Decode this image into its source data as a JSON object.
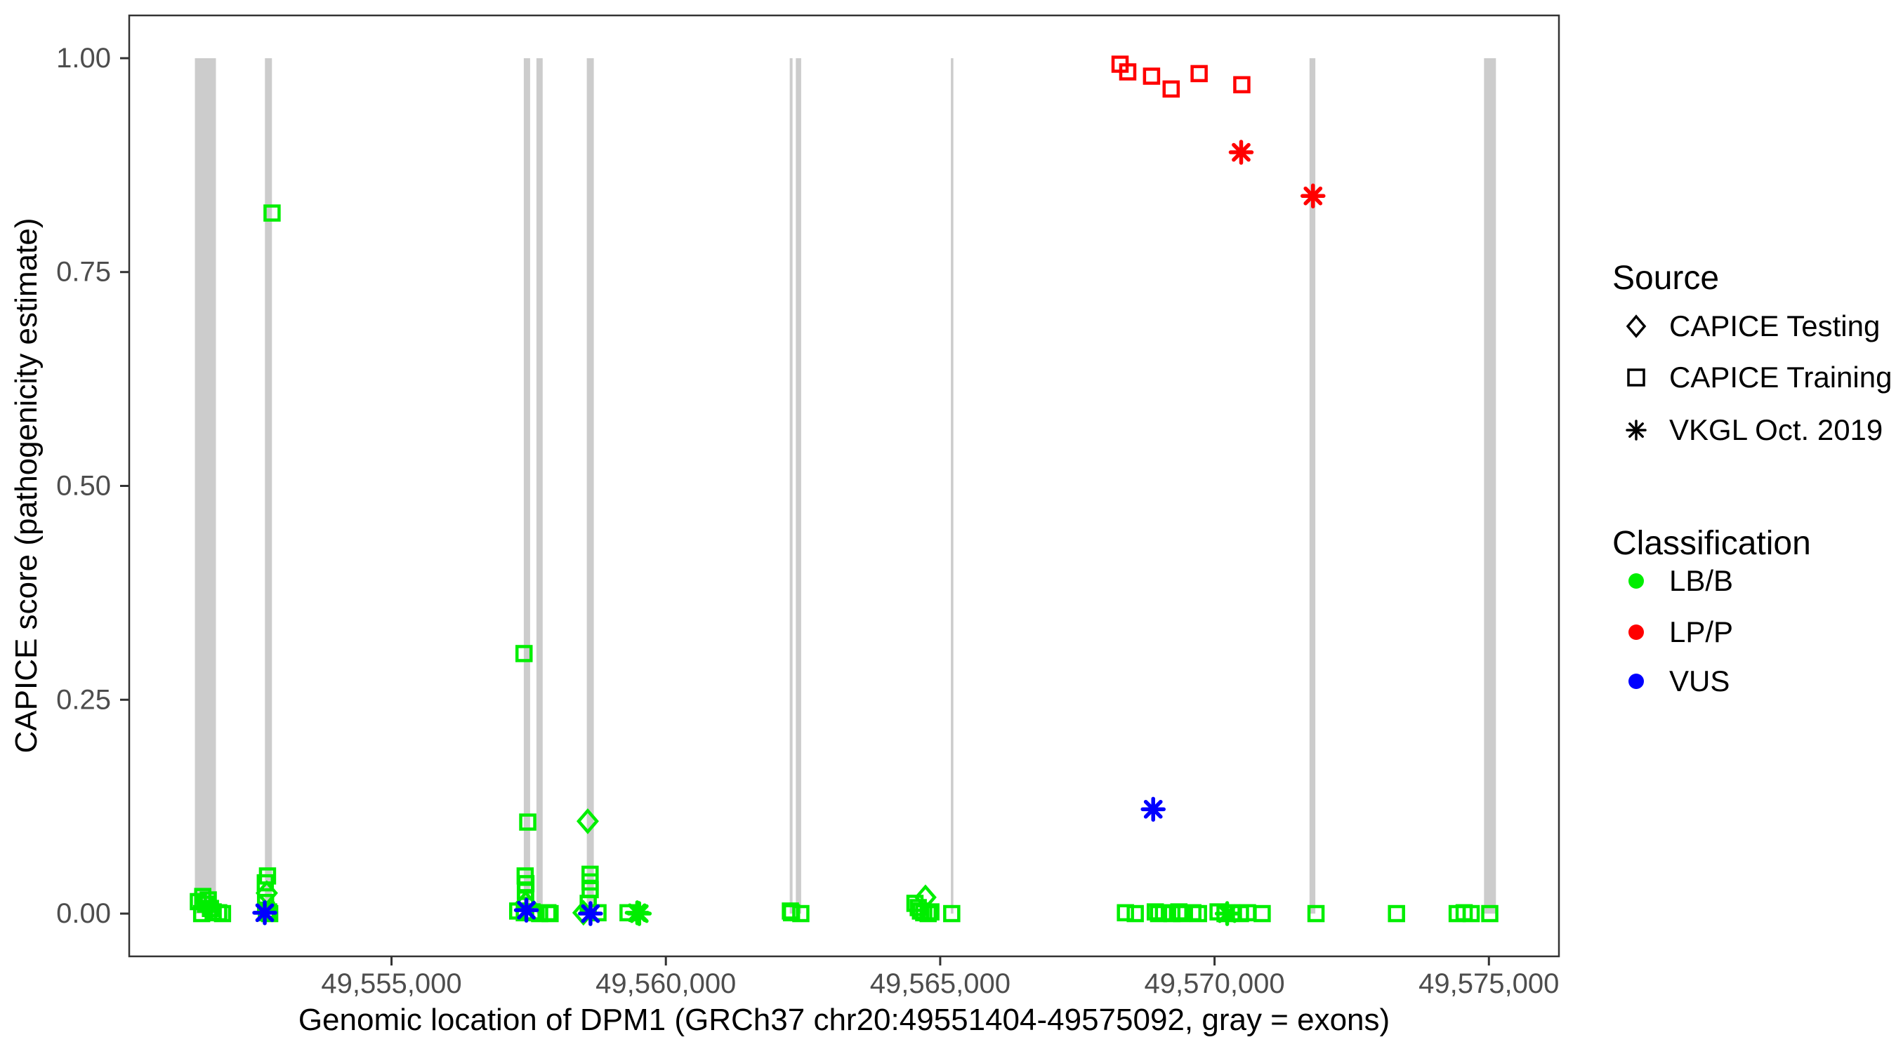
{
  "chart_data": {
    "type": "scatter",
    "title": "",
    "xlabel": "Genomic location of DPM1 (GRCh37 chr20:49551404-49575092, gray = exons)",
    "ylabel": "CAPICE score (pathogenicity estimate)",
    "x_domain": [
      49551404,
      49575092
    ],
    "y_domain": [
      0,
      1
    ],
    "expansion_frac": 0.05,
    "grid": "off",
    "legend_position": "right",
    "x_ticks": [
      {
        "value": 49555000,
        "label": "49,555,000"
      },
      {
        "value": 49560000,
        "label": "49,560,000"
      },
      {
        "value": 49565000,
        "label": "49,565,000"
      },
      {
        "value": 49570000,
        "label": "49,570,000"
      },
      {
        "value": 49575000,
        "label": "49,575,000"
      }
    ],
    "y_ticks": [
      {
        "value": 0.0,
        "label": "0.00"
      },
      {
        "value": 0.25,
        "label": "0.25"
      },
      {
        "value": 0.5,
        "label": "0.50"
      },
      {
        "value": 0.75,
        "label": "0.75"
      },
      {
        "value": 1.0,
        "label": "1.00"
      }
    ],
    "colors": {
      "lb_b": "#00EE00",
      "lp_p": "#FF0000",
      "vus": "#0000FF",
      "exon": "#CCCCCC",
      "panel_border": "#333333",
      "tick_text": "#4D4D4D",
      "title_text": "#000000",
      "legend_symbol": "#000000"
    },
    "exons": [
      [
        49551417,
        49551800
      ],
      [
        49552693,
        49552821
      ],
      [
        49557411,
        49557526
      ],
      [
        49557641,
        49557755
      ],
      [
        49558559,
        49558687
      ],
      [
        49562258,
        49562309
      ],
      [
        49562369,
        49562466
      ],
      [
        49565195,
        49565238
      ],
      [
        49571731,
        49571837
      ],
      [
        49574911,
        49575128
      ]
    ],
    "series": [
      {
        "name": "LB/B · CAPICE Training",
        "classification": "LB/B",
        "source": "CAPICE Training",
        "shape": "square",
        "color": "#00EE00",
        "points": [
          [
            49551480,
            0.014
          ],
          [
            49551560,
            0.02
          ],
          [
            49551610,
            0.011
          ],
          [
            49551660,
            0.016
          ],
          [
            49551700,
            0.006
          ],
          [
            49551750,
            0.002
          ],
          [
            49551850,
            0.001
          ],
          [
            49551920,
            0.0
          ],
          [
            49551540,
            0.0
          ],
          [
            49552823,
            0.819
          ],
          [
            49552740,
            0.044
          ],
          [
            49552700,
            0.036
          ],
          [
            49552705,
            0.013
          ],
          [
            49552720,
            0.004
          ],
          [
            49552760,
            0.002
          ],
          [
            49552780,
            0.0
          ],
          [
            49552730,
            0.001
          ],
          [
            49557415,
            0.304
          ],
          [
            49557483,
            0.107
          ],
          [
            49557436,
            0.044
          ],
          [
            49557449,
            0.035
          ],
          [
            49557440,
            0.026
          ],
          [
            49557445,
            0.017
          ],
          [
            49557300,
            0.003
          ],
          [
            49557420,
            0.001
          ],
          [
            49557560,
            0.002
          ],
          [
            49557700,
            0.0
          ],
          [
            49557850,
            0.001
          ],
          [
            49557890,
            0.0
          ],
          [
            49558619,
            0.046
          ],
          [
            49558619,
            0.037
          ],
          [
            49558621,
            0.028
          ],
          [
            49558585,
            0.012
          ],
          [
            49558763,
            0.001
          ],
          [
            49559311,
            0.001
          ],
          [
            49562270,
            0.003
          ],
          [
            49562290,
            0.001
          ],
          [
            49562460,
            0.0
          ],
          [
            49564540,
            0.012
          ],
          [
            49564600,
            0.007
          ],
          [
            49564640,
            0.003
          ],
          [
            49564700,
            0.001
          ],
          [
            49564780,
            0.0
          ],
          [
            49564830,
            0.002
          ],
          [
            49565210,
            0.0
          ],
          [
            49568376,
            0.001
          ],
          [
            49568555,
            0.0
          ],
          [
            49568920,
            0.002
          ],
          [
            49568980,
            0.0
          ],
          [
            49569069,
            0.001
          ],
          [
            49569222,
            0.0
          ],
          [
            49569350,
            0.002
          ],
          [
            49569400,
            0.0
          ],
          [
            49569605,
            0.001
          ],
          [
            49569707,
            0.0
          ],
          [
            49570064,
            0.002
          ],
          [
            49570191,
            0.0
          ],
          [
            49570319,
            0.001
          ],
          [
            49570472,
            0.0
          ],
          [
            49570600,
            0.001
          ],
          [
            49570868,
            0.0
          ],
          [
            49571849,
            0.0
          ],
          [
            49573316,
            0.0
          ],
          [
            49574422,
            0.0
          ],
          [
            49574549,
            0.001
          ],
          [
            49574677,
            0.0
          ],
          [
            49575016,
            0.0
          ]
        ]
      },
      {
        "name": "LB/B · CAPICE Testing",
        "classification": "LB/B",
        "source": "CAPICE Testing",
        "shape": "diamond",
        "color": "#00EE00",
        "points": [
          [
            49552727,
            0.024
          ],
          [
            49557446,
            0.012
          ],
          [
            49558576,
            0.108
          ],
          [
            49558498,
            0.001
          ],
          [
            49564731,
            0.019
          ]
        ]
      },
      {
        "name": "LB/B · VKGL Oct. 2019",
        "classification": "LB/B",
        "source": "VKGL Oct. 2019",
        "shape": "asterisk",
        "color": "#00EE00",
        "points": [
          [
            49559515,
            0.0
          ],
          [
            49559478,
            0.001
          ],
          [
            49570230,
            0.0
          ]
        ]
      },
      {
        "name": "LP/P · CAPICE Training",
        "classification": "LP/P",
        "source": "CAPICE Training",
        "shape": "square",
        "color": "#FF0000",
        "points": [
          [
            49568278,
            0.993
          ],
          [
            49568418,
            0.984
          ],
          [
            49568852,
            0.979
          ],
          [
            49569209,
            0.964
          ],
          [
            49569719,
            0.982
          ],
          [
            49570497,
            0.969
          ]
        ]
      },
      {
        "name": "LP/P · VKGL Oct. 2019",
        "classification": "LP/P",
        "source": "VKGL Oct. 2019",
        "shape": "asterisk",
        "color": "#FF0000",
        "points": [
          [
            49570485,
            0.89
          ],
          [
            49571794,
            0.839
          ]
        ]
      },
      {
        "name": "VUS · VKGL Oct. 2019",
        "classification": "VUS",
        "source": "VKGL Oct. 2019",
        "shape": "asterisk",
        "color": "#0000FF",
        "points": [
          [
            49552690,
            0.001
          ],
          [
            49557458,
            0.004
          ],
          [
            49558626,
            0.0
          ],
          [
            49568882,
            0.122
          ]
        ]
      }
    ],
    "legend": {
      "source": {
        "title": "Source",
        "items": [
          {
            "label": "CAPICE Testing",
            "shape": "diamond"
          },
          {
            "label": "CAPICE Training",
            "shape": "square"
          },
          {
            "label": "VKGL Oct. 2019",
            "shape": "asterisk"
          }
        ]
      },
      "classification": {
        "title": "Classification",
        "items": [
          {
            "label": "LB/B",
            "color": "#00EE00"
          },
          {
            "label": "LP/P",
            "color": "#FF0000"
          },
          {
            "label": "VUS",
            "color": "#0000FF"
          }
        ]
      }
    }
  }
}
